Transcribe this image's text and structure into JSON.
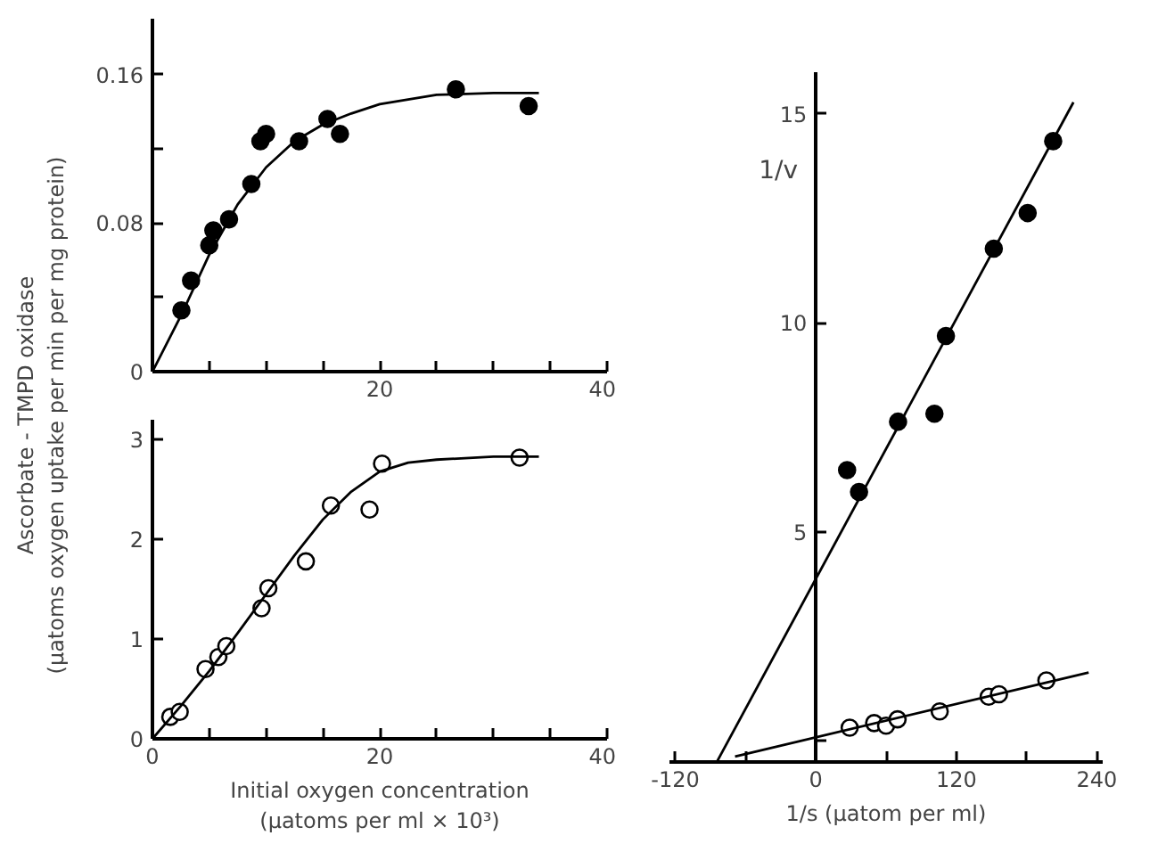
{
  "chart_data": [
    {
      "type": "scatter",
      "ylabel": "Ascorbate - TMPD oxidase\n(µatoms oxygen uptake per min per mg protein)",
      "xlim": [
        0,
        40
      ],
      "ylim": [
        0,
        0.19
      ],
      "xticks": [
        {
          "value": 0,
          "label": null
        },
        {
          "value": 5,
          "label": null
        },
        {
          "value": 10,
          "label": null
        },
        {
          "value": 15,
          "label": null
        },
        20,
        {
          "value": 25,
          "label": null
        },
        {
          "value": 30,
          "label": null
        },
        {
          "value": 35,
          "label": null
        },
        40
      ],
      "yticks": [
        0,
        {
          "value": 0.04,
          "label": null
        },
        0.08,
        {
          "value": 0.12,
          "label": null
        },
        0.16
      ],
      "grid": false,
      "series": [
        {
          "marker": "circle",
          "color": "#000000",
          "x": [
            2.55,
            3.4,
            5.0,
            5.36,
            6.74,
            8.7,
            9.5,
            10.0,
            12.9,
            15.4,
            16.5,
            26.7,
            33.1
          ],
          "values": [
            0.033,
            0.049,
            0.068,
            0.076,
            0.082,
            0.101,
            0.124,
            0.128,
            0.124,
            0.136,
            0.128,
            0.152,
            0.143
          ]
        },
        {
          "type": "line",
          "marker": "none",
          "color": "#000000",
          "x": [
            0,
            2.5,
            5,
            7.5,
            10,
            12.5,
            15,
            17.5,
            20,
            25,
            30,
            34
          ],
          "values": [
            0,
            0.03,
            0.063,
            0.09,
            0.11,
            0.124,
            0.133,
            0.139,
            0.144,
            0.149,
            0.15,
            0.15
          ]
        }
      ]
    },
    {
      "type": "scatter",
      "xlabel": "Initial oxygen concentration\n(µatoms per ml × 10³)",
      "xlim": [
        0,
        40
      ],
      "ylim": [
        0,
        3.2
      ],
      "xticks": [
        0,
        {
          "value": 5,
          "label": null
        },
        {
          "value": 10,
          "label": null
        },
        {
          "value": 15,
          "label": null
        },
        20,
        {
          "value": 25,
          "label": null
        },
        {
          "value": 30,
          "label": null
        },
        {
          "value": 35,
          "label": null
        },
        40
      ],
      "yticks": [
        0,
        1,
        2,
        3
      ],
      "grid": false,
      "series": [
        {
          "marker": "circle_open",
          "color": "#000000",
          "x": [
            1.57,
            2.4,
            4.67,
            5.8,
            6.5,
            9.6,
            10.2,
            13.5,
            15.7,
            19.1,
            20.2,
            32.3
          ],
          "values": [
            0.22,
            0.27,
            0.7,
            0.82,
            0.93,
            1.31,
            1.51,
            1.78,
            2.34,
            2.3,
            2.76,
            2.82
          ]
        },
        {
          "type": "line",
          "marker": "none",
          "color": "#000000",
          "x": [
            0,
            2.5,
            5,
            7.5,
            10,
            12.5,
            15,
            17.5,
            20,
            22.5,
            25,
            30,
            34
          ],
          "values": [
            0,
            0.33,
            0.68,
            1.06,
            1.45,
            1.84,
            2.2,
            2.48,
            2.68,
            2.77,
            2.8,
            2.83,
            2.83
          ]
        }
      ]
    },
    {
      "type": "scatter",
      "xlabel": "1/s (µatom per ml)",
      "ylabel": "1/v",
      "xlim": [
        -125,
        245
      ],
      "ylim": [
        -0.5,
        16
      ],
      "xticks": [
        -120,
        {
          "value": -60,
          "label": null
        },
        0,
        {
          "value": 60,
          "label": null
        },
        120,
        {
          "value": 180,
          "label": null
        },
        240
      ],
      "yticks": [
        {
          "value": 0,
          "label": null
        },
        5,
        10,
        15
      ],
      "grid": false,
      "series": [
        {
          "marker": "circle",
          "color": "#000000",
          "x": [
            26.7,
            36.9,
            70.2,
            101.3,
            111.1,
            152,
            180.9,
            202.7
          ],
          "values": [
            6.48,
            5.96,
            7.64,
            7.83,
            9.69,
            11.78,
            12.63,
            14.35
          ]
        },
        {
          "type": "line",
          "marker": "none",
          "color": "#000000",
          "x": [
            -84,
            220
          ],
          "values": [
            -0.47,
            15.28
          ]
        },
        {
          "marker": "circle_open",
          "color": "#000000",
          "x": [
            28.9,
            49.8,
            60,
            69.8,
            105.8,
            147.6,
            156.4,
            196.9
          ],
          "values": [
            0.32,
            0.43,
            0.37,
            0.52,
            0.71,
            1.06,
            1.12,
            1.45
          ]
        },
        {
          "type": "line",
          "marker": "none",
          "color": "#000000",
          "x": [
            -69,
            233
          ],
          "values": [
            -0.37,
            1.64
          ]
        }
      ]
    }
  ]
}
